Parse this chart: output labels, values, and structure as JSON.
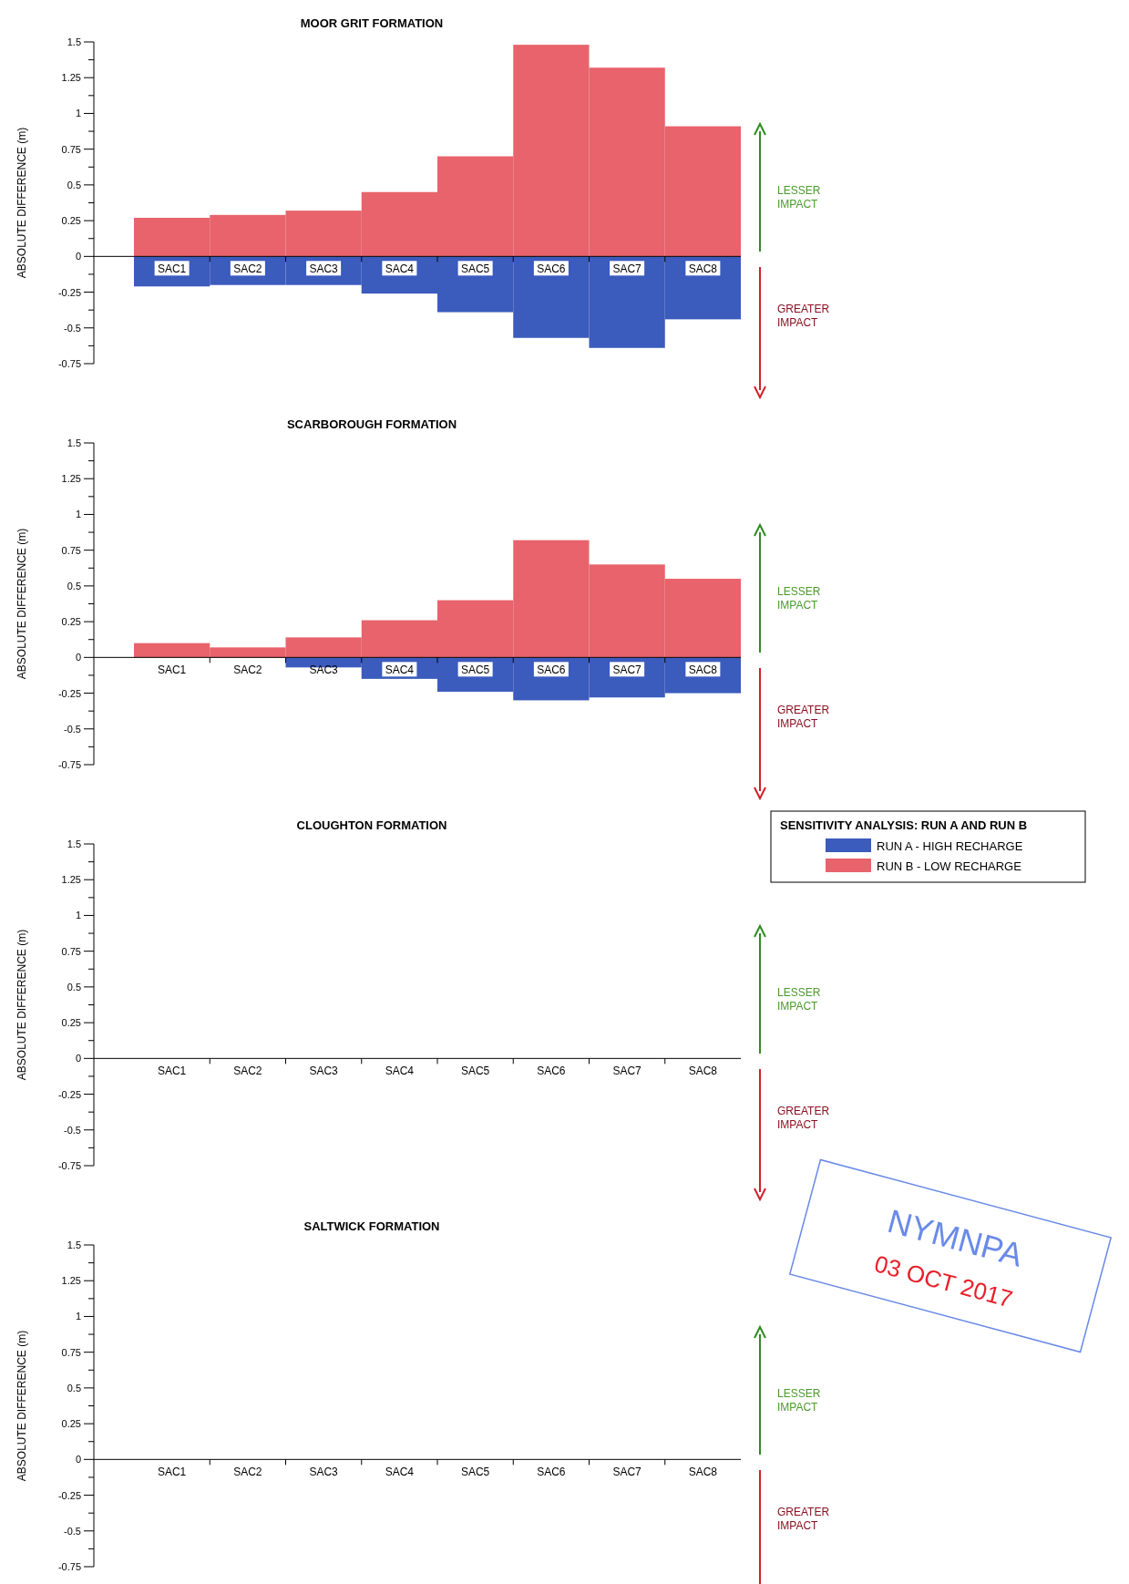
{
  "chart_data": [
    {
      "type": "bar",
      "title": "MOOR GRIT FORMATION",
      "ylabel": "ABSOLUTE DIFFERENCE (m)",
      "categories": [
        "SAC1",
        "SAC2",
        "SAC3",
        "SAC4",
        "SAC5",
        "SAC6",
        "SAC7",
        "SAC8"
      ],
      "stacked": true,
      "series": [
        {
          "name": "RUN A - HIGH RECHARGE",
          "color": "#3b5bbd",
          "values": [
            -0.21,
            -0.2,
            -0.2,
            -0.26,
            -0.39,
            -0.57,
            -0.64,
            -0.44
          ]
        },
        {
          "name": "RUN B - LOW RECHARGE",
          "color": "#e8636b",
          "values": [
            0.27,
            0.29,
            0.32,
            0.45,
            0.7,
            1.48,
            1.32,
            0.91
          ]
        }
      ],
      "legend": "right",
      "legend_title": "SENSITIVITY ANALYSIS: RUN A AND RUN B",
      "ylim": [
        -0.75,
        1.5
      ],
      "yticks": [
        -0.75,
        {
          "value": -0.625,
          "label": null
        },
        -0.5,
        {
          "value": -0.375,
          "label": null
        },
        -0.25,
        {
          "value": -0.125,
          "label": null
        },
        0,
        {
          "value": 0.125,
          "label": null
        },
        0.25,
        {
          "value": 0.375,
          "label": null
        },
        0.5,
        {
          "value": 0.625,
          "label": null
        },
        0.75,
        {
          "value": 0.875,
          "label": null
        },
        1,
        {
          "value": 1.125,
          "label": null
        },
        1.25,
        {
          "value": 1.375,
          "label": null
        },
        1.5
      ],
      "annotations": [
        "LESSER IMPACT",
        "GREATER IMPACT"
      ]
    },
    {
      "type": "bar",
      "title": "SCARBOROUGH FORMATION",
      "ylabel": "ABSOLUTE DIFFERENCE (m)",
      "categories": [
        "SAC1",
        "SAC2",
        "SAC3",
        "SAC4",
        "SAC5",
        "SAC6",
        "SAC7",
        "SAC8"
      ],
      "stacked": true,
      "series": [
        {
          "color": "#3b5bbd",
          "values": [
            0,
            0,
            -0.07,
            -0.15,
            -0.24,
            -0.3,
            -0.28,
            -0.25
          ]
        },
        {
          "color": "#e8636b",
          "values": [
            0.1,
            0.07,
            0.14,
            0.26,
            0.4,
            0.82,
            0.65,
            0.55
          ]
        }
      ],
      "ylim": [
        -0.75,
        1.5
      ],
      "yticks": [
        -0.75,
        {
          "value": -0.625,
          "label": null
        },
        -0.5,
        {
          "value": -0.375,
          "label": null
        },
        -0.25,
        {
          "value": -0.125,
          "label": null
        },
        0,
        {
          "value": 0.125,
          "label": null
        },
        0.25,
        {
          "value": 0.375,
          "label": null
        },
        0.5,
        {
          "value": 0.625,
          "label": null
        },
        0.75,
        {
          "value": 0.875,
          "label": null
        },
        1,
        {
          "value": 1.125,
          "label": null
        },
        1.25,
        {
          "value": 1.375,
          "label": null
        },
        1.5
      ],
      "annotations": [
        "LESSER IMPACT",
        "GREATER IMPACT"
      ]
    },
    {
      "type": "bar",
      "title": "CLOUGHTON FORMATION",
      "ylabel": "ABSOLUTE DIFFERENCE (m)",
      "categories": [
        "SAC1",
        "SAC2",
        "SAC3",
        "SAC4",
        "SAC5",
        "SAC6",
        "SAC7",
        "SAC8"
      ],
      "series": [
        {
          "color": "#3b5bbd",
          "values": [
            0,
            0,
            0,
            0,
            0,
            0,
            0,
            0
          ]
        },
        {
          "color": "#e8636b",
          "values": [
            0,
            0,
            0,
            0,
            0,
            0,
            0,
            0
          ]
        }
      ],
      "ylim": [
        -0.75,
        1.5
      ],
      "yticks": [
        -0.75,
        {
          "value": -0.625,
          "label": null
        },
        -0.5,
        {
          "value": -0.375,
          "label": null
        },
        -0.25,
        {
          "value": -0.125,
          "label": null
        },
        0,
        {
          "value": 0.125,
          "label": null
        },
        0.25,
        {
          "value": 0.375,
          "label": null
        },
        0.5,
        {
          "value": 0.625,
          "label": null
        },
        0.75,
        {
          "value": 0.875,
          "label": null
        },
        1,
        {
          "value": 1.125,
          "label": null
        },
        1.25,
        {
          "value": 1.375,
          "label": null
        },
        1.5
      ],
      "annotations": [
        "LESSER IMPACT",
        "GREATER IMPACT"
      ]
    },
    {
      "type": "bar",
      "title": "SALTWICK FORMATION",
      "ylabel": "ABSOLUTE DIFFERENCE (m)",
      "categories": [
        "SAC1",
        "SAC2",
        "SAC3",
        "SAC4",
        "SAC5",
        "SAC6",
        "SAC7",
        "SAC8"
      ],
      "series": [
        {
          "color": "#3b5bbd",
          "values": [
            0,
            0,
            0,
            0,
            0,
            0,
            0,
            0
          ]
        },
        {
          "color": "#e8636b",
          "values": [
            0,
            0,
            0,
            0,
            0,
            0,
            0,
            0
          ]
        }
      ],
      "ylim": [
        -0.75,
        1.5
      ],
      "yticks": [
        -0.75,
        {
          "value": -0.625,
          "label": null
        },
        -0.5,
        {
          "value": -0.375,
          "label": null
        },
        -0.25,
        {
          "value": -0.125,
          "label": null
        },
        0,
        {
          "value": 0.125,
          "label": null
        },
        0.25,
        {
          "value": 0.375,
          "label": null
        },
        0.5,
        {
          "value": 0.625,
          "label": null
        },
        0.75,
        {
          "value": 0.875,
          "label": null
        },
        1,
        {
          "value": 1.125,
          "label": null
        },
        1.25,
        {
          "value": 1.375,
          "label": null
        },
        1.5
      ],
      "annotations": [
        "LESSER IMPACT",
        "GREATER IMPACT",
        "NYMNPA",
        "03 OCT 2017"
      ]
    }
  ]
}
